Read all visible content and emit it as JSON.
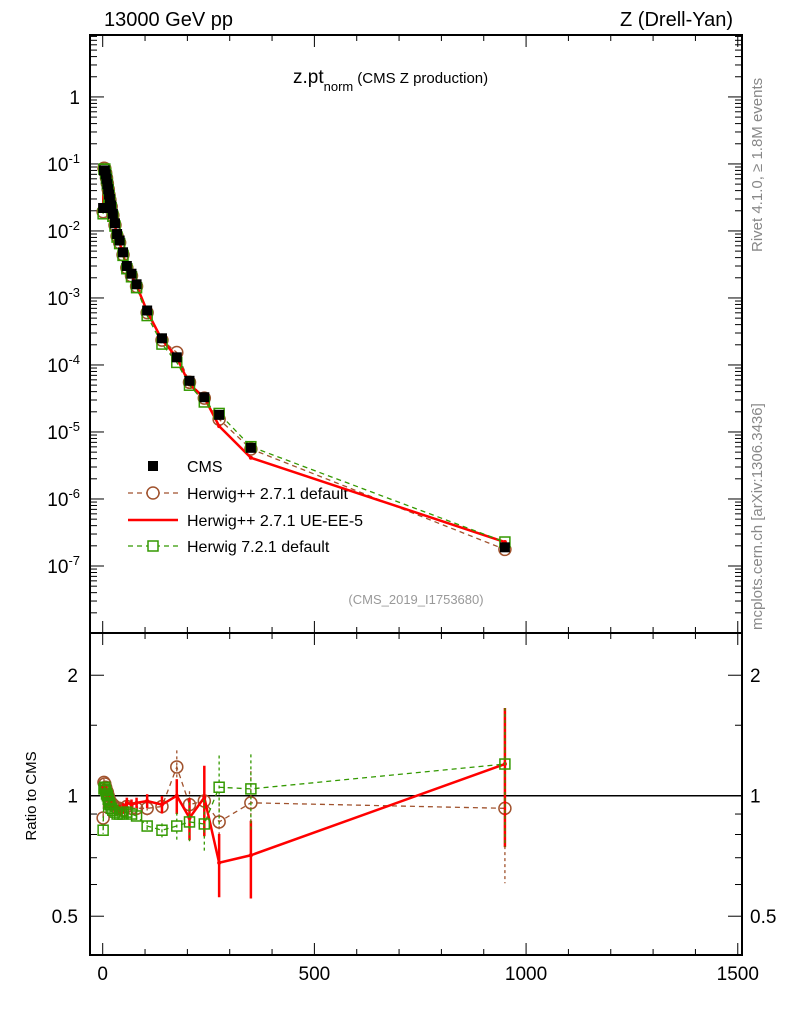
{
  "header": {
    "left": "13000 GeV pp",
    "right": "Z (Drell-Yan)"
  },
  "side": {
    "rivet": "Rivet 4.1.0, ≥ 1.8M events",
    "mcplots": "mcplots.cern.ch [arXiv:1306.3436]"
  },
  "chart_data": {
    "type": "line",
    "title": "z.pt",
    "title_sub": "norm",
    "title_suffix": "(CMS Z production)",
    "analysis": "(CMS_2019_I1753680)",
    "xlabel": "",
    "ylabel": "",
    "ratio_ylabel": "Ratio to CMS",
    "xlim": [
      -30,
      1510
    ],
    "ylim": [
      1e-08,
      8.4
    ],
    "ratio_ylim": [
      0.4,
      2.55
    ],
    "yscale": "log",
    "ratio_yscale": "log",
    "x_ticks": [
      "0",
      "500",
      "1000",
      "1500"
    ],
    "y_ticks": [
      {
        "base": "1",
        "exp": ""
      },
      {
        "base": "10",
        "exp": "-1"
      },
      {
        "base": "10",
        "exp": "-2"
      },
      {
        "base": "10",
        "exp": "-3"
      },
      {
        "base": "10",
        "exp": "-4"
      },
      {
        "base": "10",
        "exp": "-5"
      },
      {
        "base": "10",
        "exp": "-6"
      },
      {
        "base": "10",
        "exp": "-7"
      }
    ],
    "ratio_ticks": [
      "2",
      "1",
      "0.5"
    ],
    "legend_position": "bottom-left",
    "x": [
      1,
      3,
      5,
      7,
      9,
      11,
      13,
      15,
      17,
      20,
      24,
      29,
      34,
      40,
      48,
      57,
      68,
      80,
      105,
      140,
      175,
      205,
      240,
      275,
      350,
      950
    ],
    "cms": [
      0.022,
      0.08,
      0.08,
      0.07,
      0.06,
      0.05,
      0.042,
      0.035,
      0.03,
      0.024,
      0.018,
      0.013,
      0.009,
      0.0072,
      0.0048,
      0.003,
      0.0023,
      0.0016,
      0.00065,
      0.00025,
      0.00013,
      5.8e-05,
      3.3e-05,
      1.8e-05,
      5.8e-06,
      1.9e-07
    ],
    "series": [
      {
        "name": "CMS",
        "color": "#000000",
        "style": "data"
      },
      {
        "name": "Herwig++ 2.7.1 default",
        "color": "#a0522d",
        "style": "dashed-circle",
        "ratio": [
          0.88,
          1.08,
          1.07,
          1.05,
          1.03,
          1.02,
          1.0,
          0.98,
          0.97,
          0.96,
          0.95,
          0.94,
          0.93,
          0.93,
          0.92,
          0.94,
          0.93,
          0.93,
          0.93,
          0.94,
          1.18,
          0.95,
          0.97,
          0.86,
          0.96,
          0.93
        ],
        "err": [
          0.02,
          0.02,
          0.02,
          0.02,
          0.02,
          0.02,
          0.02,
          0.02,
          0.02,
          0.02,
          0.02,
          0.02,
          0.02,
          0.03,
          0.03,
          0.03,
          0.03,
          0.03,
          0.04,
          0.05,
          0.1,
          0.08,
          0.1,
          0.12,
          0.2,
          0.35
        ]
      },
      {
        "name": "Herwig++ 2.7.1 UE-EE-5",
        "color": "#ff0000",
        "style": "solid",
        "ratio": [
          1.05,
          1.06,
          1.05,
          1.04,
          1.02,
          1.0,
          0.99,
          0.98,
          0.96,
          0.95,
          0.94,
          0.93,
          0.93,
          0.92,
          0.93,
          0.96,
          0.95,
          0.96,
          0.97,
          0.95,
          1.0,
          0.88,
          0.99,
          0.68,
          0.71,
          1.2
        ],
        "err": [
          0.02,
          0.02,
          0.02,
          0.02,
          0.02,
          0.02,
          0.02,
          0.02,
          0.02,
          0.02,
          0.02,
          0.02,
          0.02,
          0.03,
          0.03,
          0.03,
          0.03,
          0.03,
          0.04,
          0.05,
          0.1,
          0.12,
          0.2,
          0.18,
          0.22,
          0.38
        ]
      },
      {
        "name": "Herwig 7.2.1 default",
        "color": "#339900",
        "style": "dashed-square",
        "ratio": [
          0.82,
          1.04,
          1.05,
          1.03,
          1.01,
          1.0,
          0.98,
          0.96,
          0.95,
          0.93,
          0.92,
          0.91,
          0.9,
          0.9,
          0.9,
          0.91,
          0.9,
          0.89,
          0.84,
          0.82,
          0.84,
          0.86,
          0.85,
          1.05,
          1.04,
          1.2
        ],
        "err": [
          0.02,
          0.02,
          0.02,
          0.02,
          0.02,
          0.02,
          0.02,
          0.02,
          0.02,
          0.02,
          0.02,
          0.02,
          0.02,
          0.03,
          0.03,
          0.03,
          0.03,
          0.03,
          0.03,
          0.04,
          0.08,
          0.12,
          0.15,
          0.2,
          0.22,
          0.38
        ]
      }
    ]
  }
}
